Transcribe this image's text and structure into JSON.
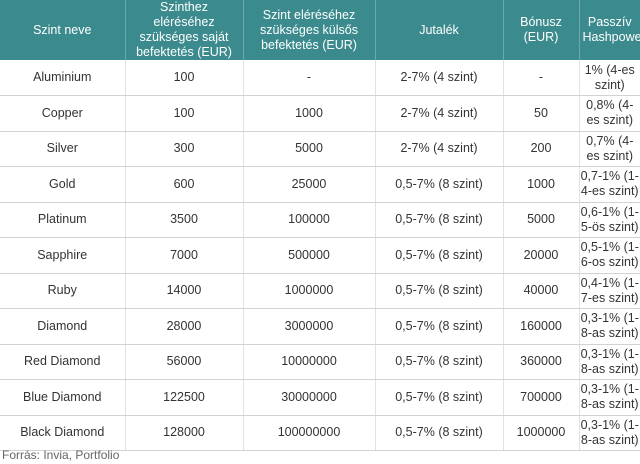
{
  "table": {
    "headers": [
      "Szint neve",
      "Szinthez eléréséhez szükséges saját befektetés (EUR)",
      "Szint eléréséhez szükséges külsős befektetés (EUR)",
      "Jutalék",
      "Bónusz (EUR)",
      "Passzív Hashpower"
    ],
    "rows": [
      [
        "Aluminium",
        "100",
        "-",
        "2-7% (4 szint)",
        "-",
        "1% (4-es szint)"
      ],
      [
        "Copper",
        "100",
        "1000",
        "2-7% (4 szint)",
        "50",
        "0,8% (4-es szint)"
      ],
      [
        "Silver",
        "300",
        "5000",
        "2-7% (4 szint)",
        "200",
        "0,7% (4-es szint)"
      ],
      [
        "Gold",
        "600",
        "25000",
        "0,5-7% (8 szint)",
        "1000",
        "0,7-1% (1-4-es szint)"
      ],
      [
        "Platinum",
        "3500",
        "100000",
        "0,5-7% (8 szint)",
        "5000",
        "0,6-1% (1-5-ös szint)"
      ],
      [
        "Sapphire",
        "7000",
        "500000",
        "0,5-7% (8 szint)",
        "20000",
        "0,5-1% (1-6-os szint)"
      ],
      [
        "Ruby",
        "14000",
        "1000000",
        "0,5-7% (8 szint)",
        "40000",
        "0,4-1% (1-7-es szint)"
      ],
      [
        "Diamond",
        "28000",
        "3000000",
        "0,5-7% (8 szint)",
        "160000",
        "0,3-1% (1-8-as szint)"
      ],
      [
        "Red Diamond",
        "56000",
        "10000000",
        "0,5-7% (8 szint)",
        "360000",
        "0,3-1% (1-8-as szint)"
      ],
      [
        "Blue Diamond",
        "122500",
        "30000000",
        "0,5-7% (8 szint)",
        "700000",
        "0,3-1% (1-8-as szint)"
      ],
      [
        "Black Diamond",
        "128000",
        "100000000",
        "0,5-7% (8 szint)",
        "1000000",
        "0,3-1% (1-8-as szint)"
      ]
    ]
  },
  "source": "Forrás: Invia, Portfolio",
  "colors": {
    "header_bg": "#3b8a8d",
    "header_text": "#ffffff",
    "row_divider": "#d2d2d2"
  }
}
